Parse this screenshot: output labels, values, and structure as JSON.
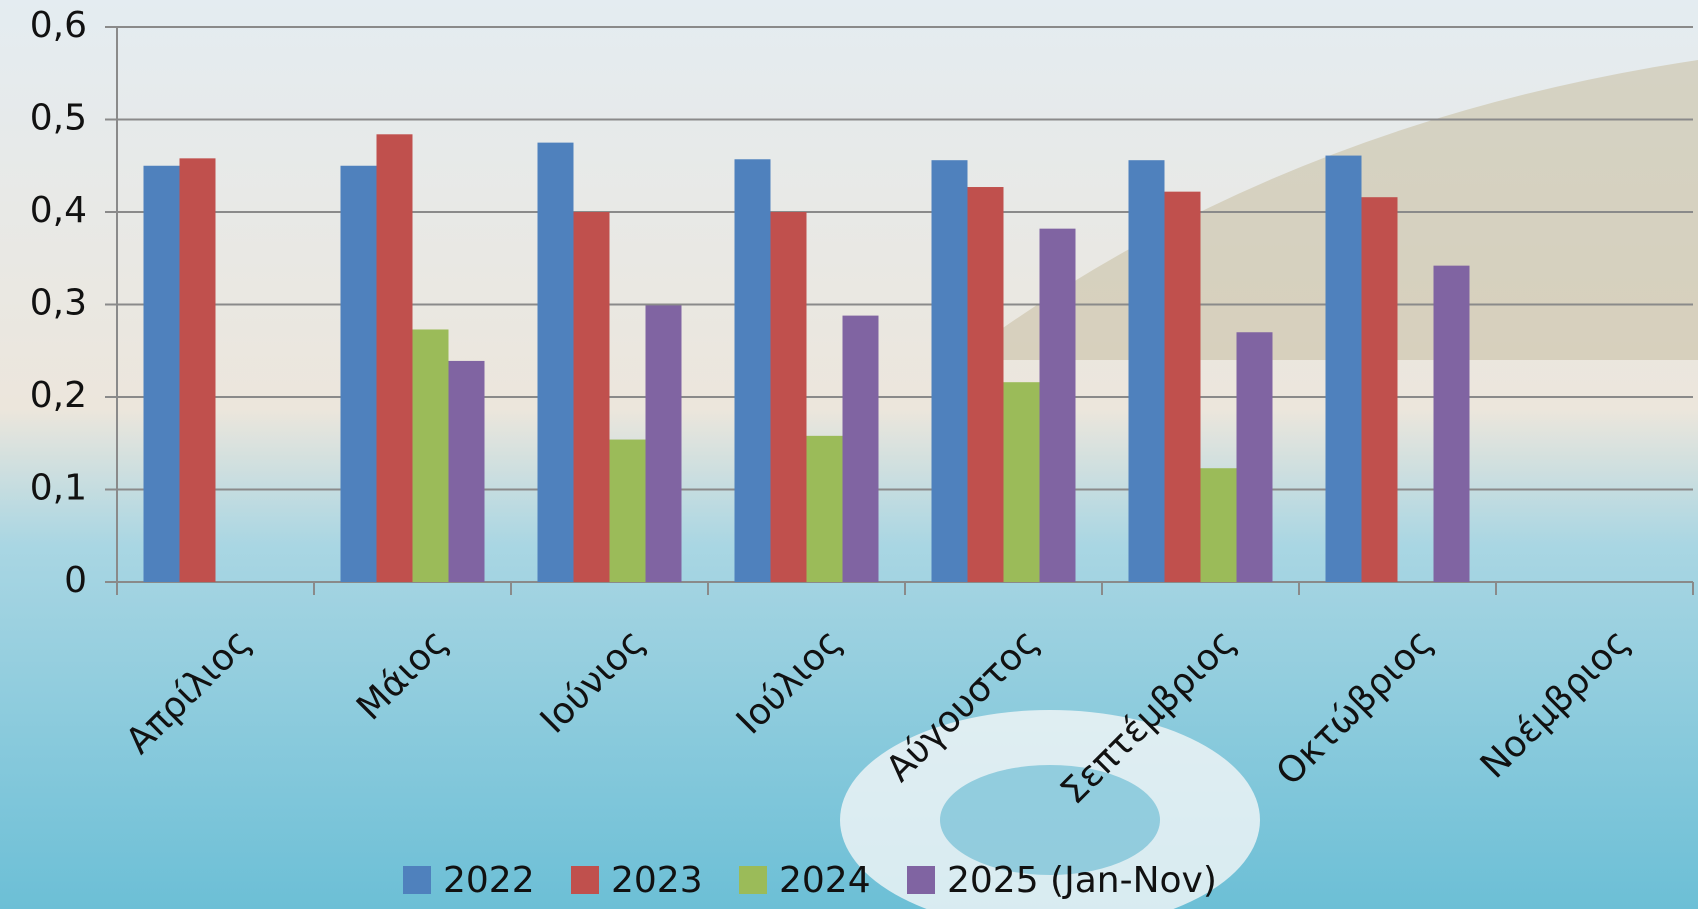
{
  "chart_data": {
    "type": "bar",
    "categories": [
      "Απρίλιος",
      "Μάιος",
      "Ιούνιος",
      "Ιούλιος",
      "Αύγουστος",
      "Σεπτέμβριος",
      "Οκτώβριος",
      "Νοέμβριος"
    ],
    "series": [
      {
        "name": "2022",
        "color": "#4f81bd",
        "values": [
          0.45,
          0.45,
          0.475,
          0.457,
          0.456,
          0.456,
          0.461,
          null
        ]
      },
      {
        "name": "2023",
        "color": "#c0504d",
        "values": [
          0.458,
          0.484,
          0.4,
          0.4,
          0.427,
          0.422,
          0.416,
          null
        ]
      },
      {
        "name": "2024",
        "color": "#9bbb59",
        "values": [
          null,
          0.273,
          0.154,
          0.158,
          0.216,
          0.123,
          null,
          null
        ]
      },
      {
        "name": "2025 (Jan-Nov)",
        "color": "#8064a2",
        "values": [
          null,
          0.239,
          0.299,
          0.288,
          0.382,
          0.27,
          0.342,
          null
        ]
      }
    ],
    "ylim": [
      0,
      0.6
    ],
    "yticks": [
      0,
      {
        "value": 0.1,
        "label": "0,1"
      },
      {
        "value": 0.2,
        "label": "0,2"
      },
      {
        "value": 0.3,
        "label": "0,3"
      },
      {
        "value": 0.4,
        "label": "0,4"
      },
      {
        "value": 0.5,
        "label": "0,5"
      },
      {
        "value": 0.6,
        "label": "0,6"
      }
    ],
    "grid": true,
    "legend": "bottom"
  }
}
